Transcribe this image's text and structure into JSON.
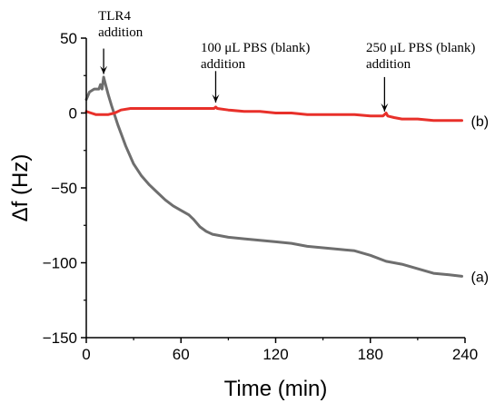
{
  "chart_data": {
    "type": "line",
    "xlabel": "Time (min)",
    "ylabel": "Δf (Hz)",
    "xlim": [
      0,
      240
    ],
    "ylim": [
      -150,
      50
    ],
    "xticks": [
      0,
      60,
      120,
      180,
      240
    ],
    "yticks": [
      50,
      0,
      -50,
      -100,
      -150
    ],
    "grid": false,
    "series": [
      {
        "name": "(a)",
        "color": "#6e6e6e",
        "points": [
          [
            0,
            9
          ],
          [
            2,
            14
          ],
          [
            5,
            16
          ],
          [
            8,
            16
          ],
          [
            9,
            19
          ],
          [
            10,
            16
          ],
          [
            11,
            24
          ],
          [
            12,
            20
          ],
          [
            14,
            12
          ],
          [
            16,
            5
          ],
          [
            20,
            -8
          ],
          [
            25,
            -22
          ],
          [
            30,
            -34
          ],
          [
            35,
            -42
          ],
          [
            40,
            -48
          ],
          [
            45,
            -53
          ],
          [
            50,
            -58
          ],
          [
            55,
            -62
          ],
          [
            60,
            -65
          ],
          [
            65,
            -68
          ],
          [
            68,
            -71
          ],
          [
            72,
            -76
          ],
          [
            76,
            -79
          ],
          [
            80,
            -81
          ],
          [
            90,
            -83
          ],
          [
            100,
            -84
          ],
          [
            110,
            -85
          ],
          [
            120,
            -86
          ],
          [
            130,
            -87
          ],
          [
            140,
            -89
          ],
          [
            150,
            -90
          ],
          [
            160,
            -91
          ],
          [
            170,
            -92
          ],
          [
            180,
            -95
          ],
          [
            190,
            -99
          ],
          [
            200,
            -101
          ],
          [
            210,
            -104
          ],
          [
            220,
            -107
          ],
          [
            230,
            -108
          ],
          [
            238,
            -109
          ]
        ]
      },
      {
        "name": "(b)",
        "color": "#e8302a",
        "points": [
          [
            0,
            1
          ],
          [
            3,
            0
          ],
          [
            6,
            -1
          ],
          [
            10,
            -1
          ],
          [
            14,
            -1
          ],
          [
            18,
            0
          ],
          [
            22,
            2
          ],
          [
            28,
            3
          ],
          [
            35,
            3
          ],
          [
            45,
            3
          ],
          [
            55,
            3
          ],
          [
            65,
            3
          ],
          [
            75,
            3
          ],
          [
            81,
            3
          ],
          [
            82,
            4
          ],
          [
            83,
            3
          ],
          [
            90,
            2
          ],
          [
            100,
            1
          ],
          [
            110,
            1
          ],
          [
            120,
            0
          ],
          [
            130,
            0
          ],
          [
            140,
            -1
          ],
          [
            150,
            -1
          ],
          [
            160,
            -1
          ],
          [
            170,
            -1
          ],
          [
            180,
            -2
          ],
          [
            188,
            -2
          ],
          [
            189,
            -1
          ],
          [
            190,
            0
          ],
          [
            191,
            -2
          ],
          [
            195,
            -3
          ],
          [
            200,
            -4
          ],
          [
            210,
            -4
          ],
          [
            220,
            -5
          ],
          [
            230,
            -5
          ],
          [
            238,
            -5
          ]
        ]
      }
    ],
    "annotations": [
      {
        "lines": [
          "TLR4",
          "addition"
        ],
        "x": 11,
        "arrow_from": 43,
        "arrow_to": 26
      },
      {
        "lines": [
          "100 μL PBS (blank)",
          "addition"
        ],
        "x": 82,
        "arrow_from": 28,
        "arrow_to": 7
      },
      {
        "lines": [
          "250 μL PBS (blank)",
          "addition"
        ],
        "x": 189,
        "arrow_from": 24,
        "arrow_to": 1
      }
    ]
  }
}
